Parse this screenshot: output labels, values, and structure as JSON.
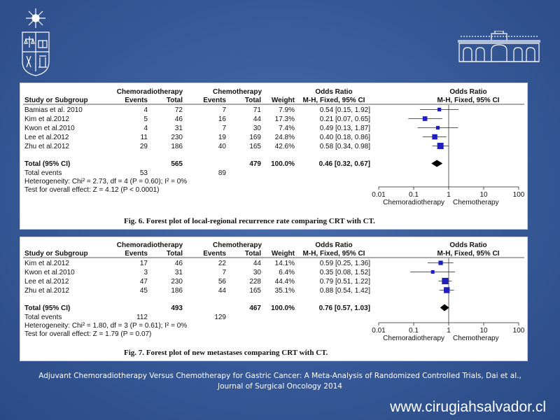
{
  "source_caption": {
    "line1": "Adjuvant Chemoradiotherapy Versus Chemotherapy for Gastric Cancer: A Meta-Analysis of Randomized Controlled Trials, Dai et al.,",
    "line2": "Journal of Surgical Oncology 2014"
  },
  "website": "www.cirugiahsalvador.cl",
  "chart_data": [
    {
      "type": "forest",
      "title": "Forest plot of local-regional recurrence rate comparing CRT with CT.",
      "figure_label": "Fig. 6.",
      "headers": {
        "group1": "Chemoradiotherapy",
        "group2": "Chemotherapy",
        "study": "Study or Subgroup",
        "events": "Events",
        "total": "Total",
        "weight": "Weight",
        "or_title": "Odds Ratio",
        "or_method": "M-H, Fixed, 95% CI"
      },
      "studies": [
        {
          "name": "Bamias et al. 2010",
          "e1": 4,
          "t1": 72,
          "e2": 7,
          "t2": 71,
          "weight": "7.9%",
          "ci_text": "0.54 [0.15, 1.92]",
          "or": 0.54,
          "lo": 0.15,
          "hi": 1.92,
          "w": 7.9
        },
        {
          "name": "Kim et al.2012",
          "e1": 5,
          "t1": 46,
          "e2": 16,
          "t2": 44,
          "weight": "17.3%",
          "ci_text": "0.21 [0.07, 0.65]",
          "or": 0.21,
          "lo": 0.07,
          "hi": 0.65,
          "w": 17.3
        },
        {
          "name": "Kwon et al.2010",
          "e1": 4,
          "t1": 31,
          "e2": 7,
          "t2": 30,
          "weight": "7.4%",
          "ci_text": "0.49 [0.13, 1.87]",
          "or": 0.49,
          "lo": 0.13,
          "hi": 1.87,
          "w": 7.4
        },
        {
          "name": "Lee et al.2012",
          "e1": 11,
          "t1": 230,
          "e2": 19,
          "t2": 169,
          "weight": "24.8%",
          "ci_text": "0.40 [0.18, 0.86]",
          "or": 0.4,
          "lo": 0.18,
          "hi": 0.86,
          "w": 24.8
        },
        {
          "name": "Zhu et al.2012",
          "e1": 29,
          "t1": 186,
          "e2": 40,
          "t2": 165,
          "weight": "42.6%",
          "ci_text": "0.58 [0.34, 0.98]",
          "or": 0.58,
          "lo": 0.34,
          "hi": 0.98,
          "w": 42.6
        }
      ],
      "total": {
        "label": "Total (95% CI)",
        "t1": 565,
        "t2": 479,
        "weight": "100.0%",
        "ci_text": "0.46 [0.32, 0.67]",
        "or": 0.46,
        "lo": 0.32,
        "hi": 0.67
      },
      "total_events": {
        "label": "Total events",
        "e1": 53,
        "e2": 89
      },
      "heterogeneity": "Heterogeneity: Chi² = 2.73, df = 4 (P = 0.60); I² = 0%",
      "overall_effect": "Test for overall effect: Z = 4.12 (P < 0.0001)",
      "axis": {
        "scale": "log",
        "ticks": [
          0.01,
          0.1,
          1,
          10,
          100
        ],
        "tick_labels": [
          "0.01",
          "0.1",
          "1",
          "10",
          "100"
        ],
        "left_label": "Chemoradiotherapy",
        "right_label": "Chemotherapy"
      }
    },
    {
      "type": "forest",
      "title": "Forest plot of new metastases comparing CRT with CT.",
      "figure_label": "Fig. 7.",
      "headers": {
        "group1": "Chemoradiotherapy",
        "group2": "Chemotherapy",
        "study": "Study or Subgroup",
        "events": "Events",
        "total": "Total",
        "weight": "Weight",
        "or_title": "Odds Ratio",
        "or_method": "M-H, Fixed, 95% CI"
      },
      "studies": [
        {
          "name": "Kim et al.2012",
          "e1": 17,
          "t1": 46,
          "e2": 22,
          "t2": 44,
          "weight": "14.1%",
          "ci_text": "0.59 [0.25, 1.36]",
          "or": 0.59,
          "lo": 0.25,
          "hi": 1.36,
          "w": 14.1
        },
        {
          "name": "Kwon et al.2010",
          "e1": 3,
          "t1": 31,
          "e2": 7,
          "t2": 30,
          "weight": "6.4%",
          "ci_text": "0.35 [0.08, 1.52]",
          "or": 0.35,
          "lo": 0.08,
          "hi": 1.52,
          "w": 6.4
        },
        {
          "name": "Lee et al.2012",
          "e1": 47,
          "t1": 230,
          "e2": 56,
          "t2": 228,
          "weight": "44.4%",
          "ci_text": "0.79 [0.51, 1.22]",
          "or": 0.79,
          "lo": 0.51,
          "hi": 1.22,
          "w": 44.4
        },
        {
          "name": "Zhu et al.2012",
          "e1": 45,
          "t1": 186,
          "e2": 44,
          "t2": 165,
          "weight": "35.1%",
          "ci_text": "0.88 [0.54, 1.42]",
          "or": 0.88,
          "lo": 0.54,
          "hi": 1.42,
          "w": 35.1
        }
      ],
      "total": {
        "label": "Total (95% CI)",
        "t1": 493,
        "t2": 467,
        "weight": "100.0%",
        "ci_text": "0.76 [0.57, 1.03]",
        "or": 0.76,
        "lo": 0.57,
        "hi": 1.03
      },
      "total_events": {
        "label": "Total events",
        "e1": 112,
        "e2": 129
      },
      "heterogeneity": "Heterogeneity: Chi² = 1.80, df = 3 (P = 0.61); I² = 0%",
      "overall_effect": "Test for overall effect: Z = 1.79 (P = 0.07)",
      "axis": {
        "scale": "log",
        "ticks": [
          0.01,
          0.1,
          1,
          10,
          100
        ],
        "tick_labels": [
          "0.01",
          "0.1",
          "1",
          "10",
          "100"
        ],
        "left_label": "Chemoradiotherapy",
        "right_label": "Chemotherapy"
      }
    }
  ],
  "colors": {
    "marker": "#1f1fbf",
    "text": "#111111",
    "background_top": "#4a6fae",
    "background_edge": "#2a4a85"
  }
}
